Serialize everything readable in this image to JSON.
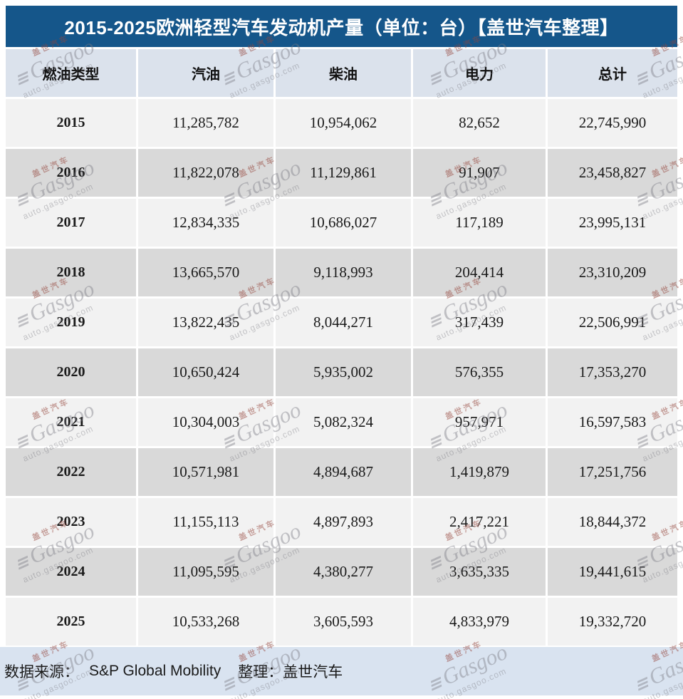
{
  "title": "2015-2025欧洲轻型汽车发动机产量（单位：台）【盖世汽车整理】",
  "table": {
    "columns": {
      "fuel_type": "燃油类型",
      "gasoline": "汽油",
      "diesel": "柴油",
      "electric": "电力",
      "total": "总计"
    },
    "rows": [
      {
        "year": "2015",
        "gasoline": "11,285,782",
        "diesel": "10,954,062",
        "electric": "82,652",
        "total": "22,745,990"
      },
      {
        "year": "2016",
        "gasoline": "11,822,078",
        "diesel": "11,129,861",
        "electric": "91,907",
        "total": "23,458,827"
      },
      {
        "year": "2017",
        "gasoline": "12,834,335",
        "diesel": "10,686,027",
        "electric": "117,189",
        "total": "23,995,131"
      },
      {
        "year": "2018",
        "gasoline": "13,665,570",
        "diesel": "9,118,993",
        "electric": "204,414",
        "total": "23,310,209"
      },
      {
        "year": "2019",
        "gasoline": "13,822,435",
        "diesel": "8,044,271",
        "electric": "317,439",
        "total": "22,506,991"
      },
      {
        "year": "2020",
        "gasoline": "10,650,424",
        "diesel": "5,935,002",
        "electric": "576,355",
        "total": "17,353,270"
      },
      {
        "year": "2021",
        "gasoline": "10,304,003",
        "diesel": "5,082,324",
        "electric": "957,971",
        "total": "16,597,583"
      },
      {
        "year": "2022",
        "gasoline": "10,571,981",
        "diesel": "4,894,687",
        "electric": "1,419,879",
        "total": "17,251,756"
      },
      {
        "year": "2023",
        "gasoline": "11,155,113",
        "diesel": "4,897,893",
        "electric": "2,417,221",
        "total": "18,844,372"
      },
      {
        "year": "2024",
        "gasoline": "11,095,595",
        "diesel": "4,380,277",
        "electric": "3,635,335",
        "total": "19,441,615"
      },
      {
        "year": "2025",
        "gasoline": "10,533,268",
        "diesel": "3,605,593",
        "electric": "4,833,979",
        "total": "19,332,720"
      }
    ]
  },
  "footer": {
    "source_label": "数据来源：",
    "source_value": "S&P Global Mobility",
    "compiled_label": "整理：",
    "compiled_value": "盖世汽车"
  },
  "watermark": {
    "cn": "盖世汽车",
    "en": "Gasgoo",
    "url": "auto.gasgoo.com"
  },
  "colors": {
    "title_bg": "#15568a",
    "header_bg": "#dbe2ec",
    "row_light": "#f2f2f2",
    "row_dark": "#d9d9d9",
    "footer_bg": "#d9e3f0"
  },
  "chart_data": {
    "type": "table",
    "title": "2015-2025欧洲轻型汽车发动机产量（单位：台）【盖世汽车整理】",
    "categories": [
      "2015",
      "2016",
      "2017",
      "2018",
      "2019",
      "2020",
      "2021",
      "2022",
      "2023",
      "2024",
      "2025"
    ],
    "series": [
      {
        "name": "汽油",
        "values": [
          11285782,
          11822078,
          12834335,
          13665570,
          13822435,
          10650424,
          10304003,
          10571981,
          11155113,
          11095595,
          10533268
        ]
      },
      {
        "name": "柴油",
        "values": [
          10954062,
          11129861,
          10686027,
          9118993,
          8044271,
          5935002,
          5082324,
          4894687,
          4897893,
          4380277,
          3605593
        ]
      },
      {
        "name": "电力",
        "values": [
          82652,
          91907,
          117189,
          204414,
          317439,
          576355,
          957971,
          1419879,
          2417221,
          3635335,
          4833979
        ]
      },
      {
        "name": "总计",
        "values": [
          22745990,
          23458827,
          23995131,
          23310209,
          22506991,
          17353270,
          16597583,
          17251756,
          18844372,
          19441615,
          19332720
        ]
      }
    ],
    "unit": "台",
    "source": "S&P Global Mobility"
  }
}
